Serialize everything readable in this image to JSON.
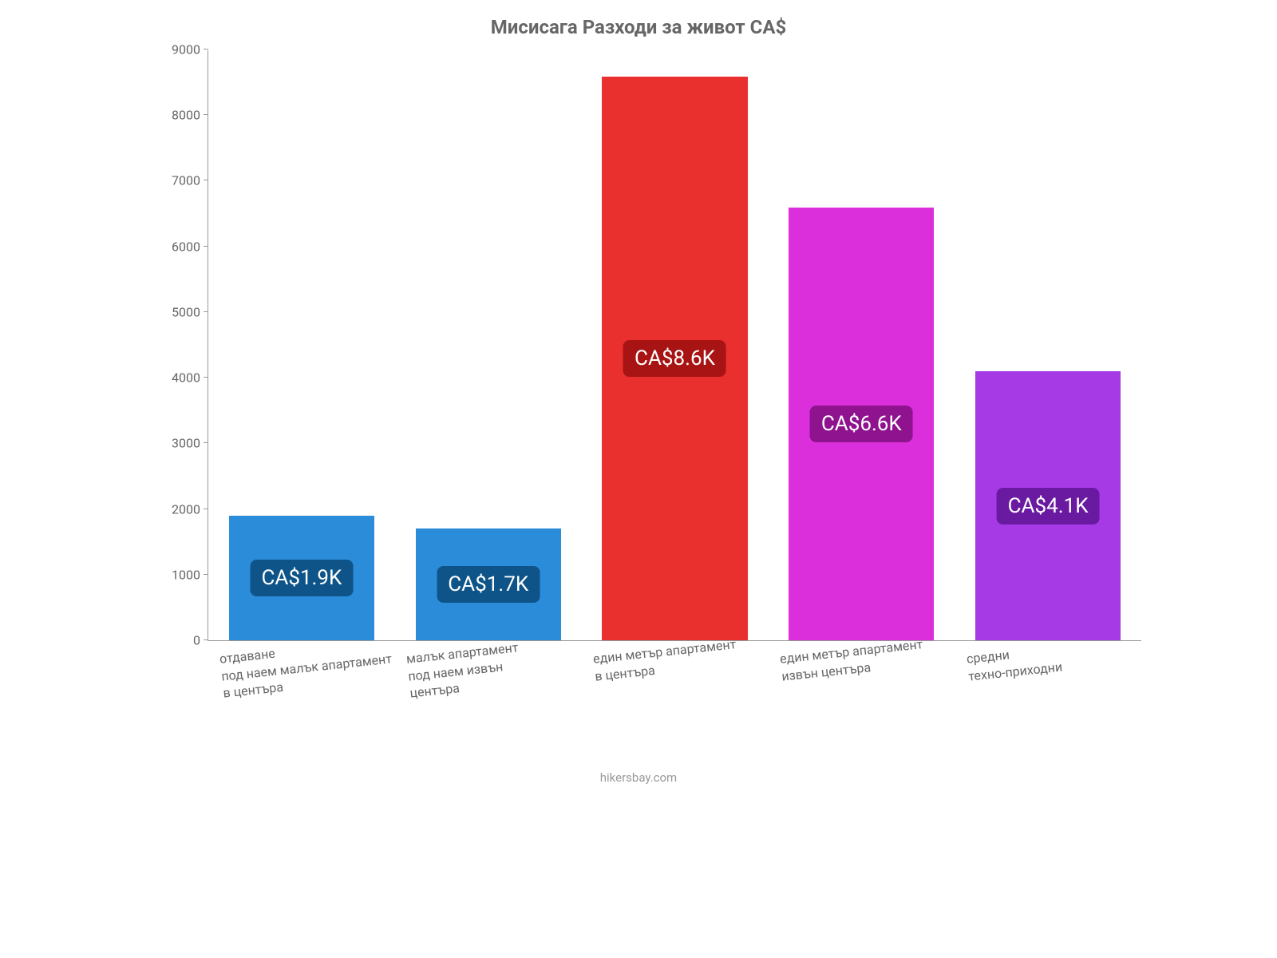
{
  "chart": {
    "type": "bar",
    "title": "Мисисага Разходи за живот CA$",
    "title_fontsize": 24,
    "title_color": "#666666",
    "background_color": "#ffffff",
    "axis_color": "#999999",
    "ylim": [
      0,
      9000
    ],
    "ytick_step": 1000,
    "yticks": [
      {
        "value": 0,
        "label": "0"
      },
      {
        "value": 1000,
        "label": "1000"
      },
      {
        "value": 2000,
        "label": "2000"
      },
      {
        "value": 3000,
        "label": "3000"
      },
      {
        "value": 4000,
        "label": "4000"
      },
      {
        "value": 5000,
        "label": "5000"
      },
      {
        "value": 6000,
        "label": "6000"
      },
      {
        "value": 7000,
        "label": "7000"
      },
      {
        "value": 8000,
        "label": "8000"
      },
      {
        "value": 9000,
        "label": "9000"
      }
    ],
    "ytick_color": "#666666",
    "ytick_fontsize": 16,
    "bar_width": 0.78,
    "categories": [
      {
        "lines": [
          "отдаване",
          "под наем малък апартамент",
          "в центъра"
        ]
      },
      {
        "lines": [
          "малък апартамент",
          "под наем извън",
          "центъра"
        ]
      },
      {
        "lines": [
          "един метър апартамент",
          "в центъра"
        ]
      },
      {
        "lines": [
          "един метър апартамент",
          "извън центъра"
        ]
      },
      {
        "lines": [
          "средни",
          "техно-приходни"
        ]
      }
    ],
    "xlabel_color": "#666666",
    "xlabel_fontsize": 16,
    "xlabel_rotation_deg": -6,
    "series": [
      {
        "value": 1900,
        "display": "CA$1.9K",
        "bar_color": "#2b8cda",
        "badge_color": "#0e5488"
      },
      {
        "value": 1700,
        "display": "CA$1.7K",
        "bar_color": "#2b8cda",
        "badge_color": "#0e5488"
      },
      {
        "value": 8600,
        "display": "CA$8.6K",
        "bar_color": "#ea2f2f",
        "badge_color": "#a81313"
      },
      {
        "value": 6600,
        "display": "CA$6.6K",
        "bar_color": "#db2fdb",
        "badge_color": "#8f128f"
      },
      {
        "value": 4100,
        "display": "CA$4.1K",
        "bar_color": "#a63be6",
        "badge_color": "#6a1aa1"
      }
    ],
    "value_label_fontsize": 26,
    "value_label_text_color": "#ffffff",
    "footer": "hikersbay.com",
    "footer_color": "#999999",
    "footer_fontsize": 15
  }
}
